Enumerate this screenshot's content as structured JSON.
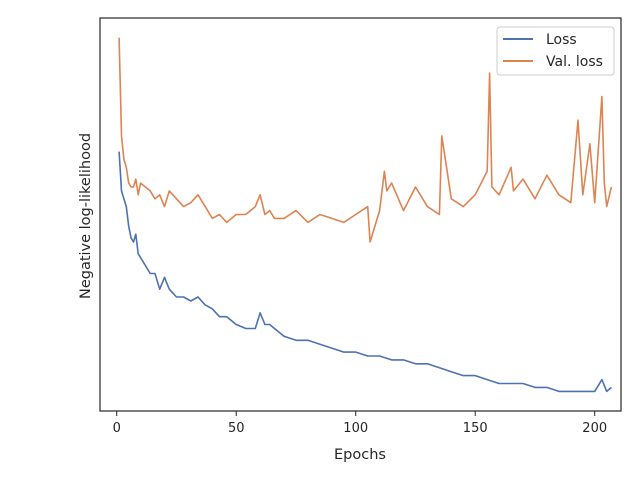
{
  "chart_data": {
    "type": "line",
    "title": "",
    "xlabel": "Epochs",
    "ylabel": "Negative log-likelihood",
    "xlim": [
      -7,
      211
    ],
    "ylim": [
      0,
      100
    ],
    "xticks": [
      0,
      50,
      100,
      150,
      200
    ],
    "yticks_labeled": false,
    "grid": false,
    "legend_position": "top-right",
    "series": [
      {
        "name": "Loss",
        "color": "#4c72b0",
        "x": [
          1,
          2,
          3,
          4,
          5,
          6,
          7,
          8,
          9,
          10,
          12,
          14,
          16,
          18,
          20,
          22,
          25,
          28,
          31,
          34,
          37,
          40,
          43,
          46,
          50,
          54,
          58,
          60,
          62,
          64,
          66,
          70,
          75,
          80,
          85,
          90,
          95,
          100,
          105,
          110,
          115,
          120,
          125,
          130,
          135,
          140,
          145,
          150,
          155,
          160,
          165,
          170,
          175,
          180,
          185,
          190,
          195,
          200,
          203,
          205,
          207
        ],
        "y": [
          66,
          56,
          54,
          52,
          47,
          44,
          43,
          45,
          40,
          39,
          37,
          35,
          35,
          31,
          34,
          31,
          29,
          29,
          28,
          29,
          27,
          26,
          24,
          24,
          22,
          21,
          21,
          25,
          22,
          22,
          21,
          19,
          18,
          18,
          17,
          16,
          15,
          15,
          14,
          14,
          13,
          13,
          12,
          12,
          11,
          10,
          9,
          9,
          8,
          7,
          7,
          7,
          6,
          6,
          5,
          5,
          5,
          5,
          8,
          5,
          6
        ]
      },
      {
        "name": "Val. loss",
        "color": "#dd8452",
        "x": [
          1,
          2,
          3,
          4,
          5,
          6,
          7,
          8,
          9,
          10,
          12,
          14,
          16,
          18,
          20,
          22,
          25,
          28,
          31,
          34,
          37,
          40,
          43,
          46,
          50,
          54,
          58,
          60,
          62,
          64,
          66,
          70,
          75,
          80,
          85,
          90,
          95,
          100,
          105,
          106,
          110,
          112,
          113,
          115,
          120,
          125,
          130,
          135,
          136,
          140,
          145,
          150,
          155,
          156,
          157,
          160,
          165,
          166,
          170,
          175,
          180,
          185,
          190,
          193,
          195,
          198,
          200,
          203,
          204,
          205,
          207
        ],
        "y": [
          95,
          70,
          64,
          62,
          58,
          57,
          57,
          59,
          55,
          58,
          57,
          56,
          54,
          55,
          52,
          56,
          54,
          52,
          53,
          55,
          52,
          49,
          50,
          48,
          50,
          50,
          52,
          55,
          50,
          51,
          49,
          49,
          51,
          48,
          50,
          49,
          48,
          50,
          52,
          43,
          51,
          61,
          56,
          58,
          51,
          57,
          52,
          50,
          70,
          54,
          52,
          55,
          61,
          86,
          57,
          55,
          62,
          56,
          59,
          54,
          60,
          55,
          53,
          74,
          55,
          68,
          53,
          80,
          58,
          52,
          57
        ]
      }
    ]
  }
}
